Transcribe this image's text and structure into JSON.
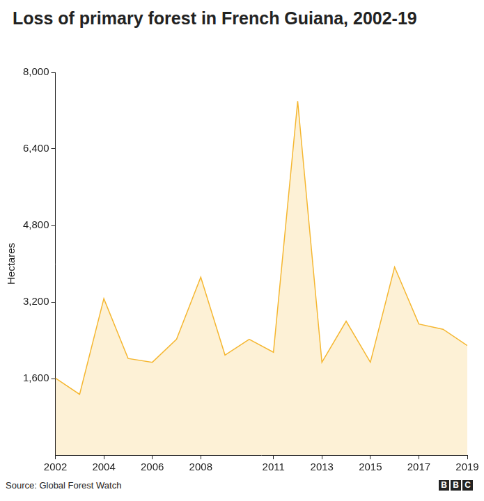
{
  "chart_data": {
    "type": "area",
    "title": "Loss of primary forest in French Guiana, 2002-19",
    "y_label": "Hectares",
    "source": "Source: Global Forest Watch",
    "logo": "BBC",
    "x": [
      2002,
      2003,
      2004,
      2005,
      2006,
      2007,
      2008,
      2009,
      2010,
      2011,
      2012,
      2013,
      2014,
      2015,
      2016,
      2017,
      2018,
      2019
    ],
    "values": [
      1610,
      1270,
      3270,
      2020,
      1940,
      2420,
      3720,
      2090,
      2420,
      2150,
      7400,
      1940,
      2800,
      1940,
      3930,
      2740,
      2630,
      2290
    ],
    "color": "#f5b731",
    "xlim": [
      2002,
      2019
    ],
    "xticks": [
      2002,
      2004,
      2006,
      2008,
      2011,
      2013,
      2015,
      2017,
      2019
    ],
    "ylim": [
      0,
      8000
    ],
    "yticks": [
      {
        "value": 1600,
        "label": "1,600"
      },
      {
        "value": 3200,
        "label": "3,200"
      },
      {
        "value": 4800,
        "label": "4,800"
      },
      {
        "value": 6400,
        "label": "6,400"
      },
      {
        "value": 8000,
        "label": "8,000"
      }
    ],
    "grid": false
  }
}
